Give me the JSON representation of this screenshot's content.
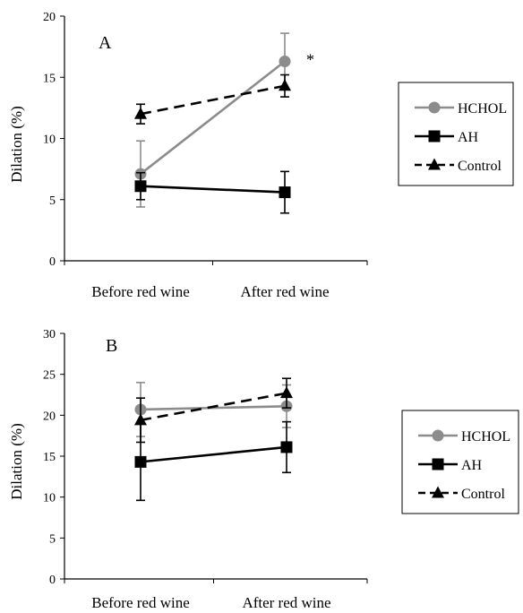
{
  "colors": {
    "HCHOL": "#8c8c8c",
    "AH": "#000000",
    "Control": "#000000"
  },
  "legend_items": [
    "HCHOL",
    "AH",
    "Control"
  ],
  "chart_data": [
    {
      "type": "line",
      "panel_label": "A",
      "categories": [
        "Before red wine",
        "After red wine"
      ],
      "ylabel": "Dilation (%)",
      "ylim": [
        0,
        20
      ],
      "yticks": [
        "0",
        "5",
        "10",
        "15",
        "20"
      ],
      "grid": false,
      "legend_position": "right",
      "annotation": "*",
      "series": [
        {
          "name": "HCHOL",
          "marker": "circle",
          "line": "solid",
          "values": [
            7.1,
            16.3
          ],
          "errors": [
            2.7,
            2.3
          ]
        },
        {
          "name": "AH",
          "marker": "square",
          "line": "solid",
          "values": [
            6.1,
            5.6
          ],
          "errors": [
            1.1,
            1.7
          ]
        },
        {
          "name": "Control",
          "marker": "triangle",
          "line": "dashed",
          "values": [
            12.0,
            14.3
          ],
          "errors": [
            0.8,
            0.9
          ]
        }
      ]
    },
    {
      "type": "line",
      "panel_label": "B",
      "categories": [
        "Before red wine",
        "After red wine"
      ],
      "ylabel": "Dilation (%)",
      "ylim": [
        0,
        30
      ],
      "yticks": [
        "0",
        "5",
        "10",
        "15",
        "20",
        "25",
        "30"
      ],
      "grid": false,
      "legend_position": "right",
      "series": [
        {
          "name": "HCHOL",
          "marker": "circle",
          "line": "solid",
          "values": [
            20.7,
            21.1
          ],
          "errors": [
            3.3,
            2.6
          ]
        },
        {
          "name": "AH",
          "marker": "square",
          "line": "solid",
          "values": [
            14.3,
            16.1
          ],
          "errors": [
            4.7,
            3.1
          ]
        },
        {
          "name": "Control",
          "marker": "triangle",
          "line": "dashed",
          "values": [
            19.4,
            22.7
          ],
          "errors": [
            2.7,
            1.8
          ]
        }
      ]
    }
  ]
}
